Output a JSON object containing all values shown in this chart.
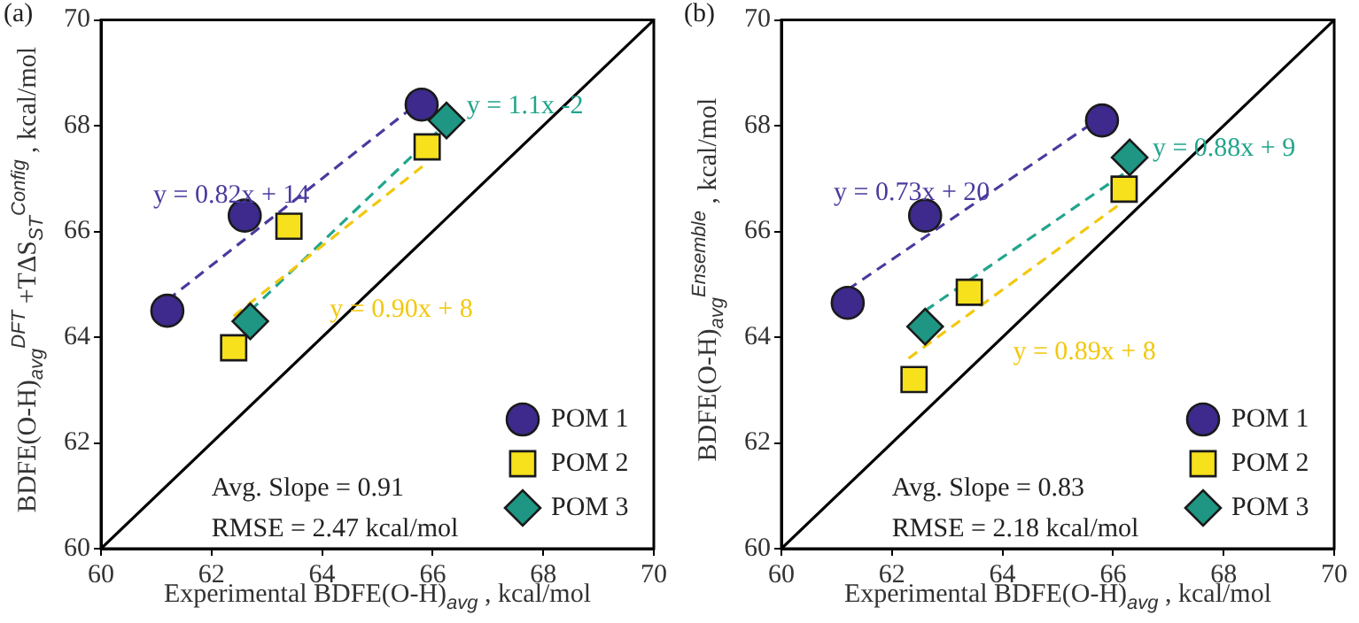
{
  "chart_data": [
    {
      "type": "scatter",
      "title": "(a)",
      "xlabel": "Experimental BDFE(O-H)$_{avg}$ , kcal/mol",
      "ylabel": "BDFE(O-H)$_{avg}$$^{DFT}$ +TΔS$_{ST}$$^{Config}$ , kcal/mol",
      "xlim": [
        60,
        70
      ],
      "ylim": [
        60,
        70
      ],
      "xticks": [
        60,
        62,
        64,
        66,
        68,
        70
      ],
      "yticks": [
        60,
        62,
        64,
        66,
        68,
        70
      ],
      "grid": false,
      "legend": "bottom right",
      "series": [
        {
          "name": "POM 1",
          "type": "scatter",
          "marker": "circle",
          "color": "#3d2a8c",
          "x": [
            61.2,
            62.6,
            65.8
          ],
          "values": [
            64.5,
            66.3,
            68.4
          ]
        },
        {
          "name": "POM 2",
          "type": "scatter",
          "marker": "square",
          "color": "#f7e11c",
          "x": [
            62.4,
            63.4,
            65.9
          ],
          "values": [
            63.8,
            66.1,
            67.6
          ]
        },
        {
          "name": "POM 3",
          "type": "scatter",
          "marker": "diamond",
          "color": "#1e9683",
          "x": [
            62.7,
            66.25
          ],
          "values": [
            64.3,
            68.1
          ]
        },
        {
          "type": "line",
          "marker": "none",
          "line_style": "dashed",
          "color": "#4b3a9e",
          "x": [
            61.2,
            65.7
          ],
          "values": [
            64.7,
            68.4
          ]
        },
        {
          "type": "line",
          "marker": "none",
          "line_style": "dashed",
          "color": "#f2c80f",
          "x": [
            62.4,
            65.9
          ],
          "values": [
            64.4,
            67.3
          ]
        },
        {
          "type": "line",
          "marker": "none",
          "line_style": "dashed",
          "color": "#22a58d",
          "x": [
            62.7,
            66.1
          ],
          "values": [
            64.5,
            67.9
          ]
        },
        {
          "type": "line",
          "marker": "none",
          "line_style": "solid",
          "color": "#000000",
          "x": [
            60,
            70
          ],
          "values": [
            60,
            70
          ]
        }
      ],
      "annotations": [
        "y = 0.82x + 14",
        "y = 0.90x + 8",
        "y = 1.1x -2",
        "Avg. Slope = 0.91",
        "RMSE = 2.47 kcal/mol"
      ]
    },
    {
      "type": "scatter",
      "title": "(b)",
      "xlabel": "Experimental BDFE(O-H)$_{avg}$ , kcal/mol",
      "ylabel": "BDFE(O-H)$_{avg}$$^{Ensemble}$ , kcal/mol",
      "xlim": [
        60,
        70
      ],
      "ylim": [
        60,
        70
      ],
      "xticks": [
        60,
        62,
        64,
        66,
        68,
        70
      ],
      "yticks": [
        60,
        62,
        64,
        66,
        68,
        70
      ],
      "grid": false,
      "legend": "bottom right",
      "series": [
        {
          "name": "POM 1",
          "type": "scatter",
          "marker": "circle",
          "color": "#3d2a8c",
          "x": [
            61.2,
            62.6,
            65.8
          ],
          "values": [
            64.65,
            66.3,
            68.1
          ]
        },
        {
          "name": "POM 2",
          "type": "scatter",
          "marker": "square",
          "color": "#f7e11c",
          "x": [
            62.4,
            63.4,
            66.2
          ],
          "values": [
            63.2,
            64.85,
            66.8
          ]
        },
        {
          "name": "POM 3",
          "type": "scatter",
          "marker": "diamond",
          "color": "#1e9683",
          "x": [
            62.6,
            66.3
          ],
          "values": [
            64.2,
            67.4
          ]
        },
        {
          "type": "line",
          "marker": "none",
          "line_style": "dashed",
          "color": "#4b3a9e",
          "x": [
            61.2,
            65.7
          ],
          "values": [
            64.9,
            68.1
          ]
        },
        {
          "type": "line",
          "marker": "none",
          "line_style": "dashed",
          "color": "#f2c80f",
          "x": [
            62.3,
            66.1
          ],
          "values": [
            63.6,
            66.5
          ]
        },
        {
          "type": "line",
          "marker": "none",
          "line_style": "dashed",
          "color": "#22a58d",
          "x": [
            62.6,
            66.2
          ],
          "values": [
            64.5,
            67.1
          ]
        },
        {
          "type": "line",
          "marker": "none",
          "line_style": "solid",
          "color": "#000000",
          "x": [
            60,
            70
          ],
          "values": [
            60,
            70
          ]
        }
      ],
      "annotations": [
        "y = 0.73x + 20",
        "y = 0.89x + 8",
        "y = 0.88x + 9",
        "Avg. Slope = 0.83",
        "RMSE = 2.18 kcal/mol"
      ]
    }
  ]
}
